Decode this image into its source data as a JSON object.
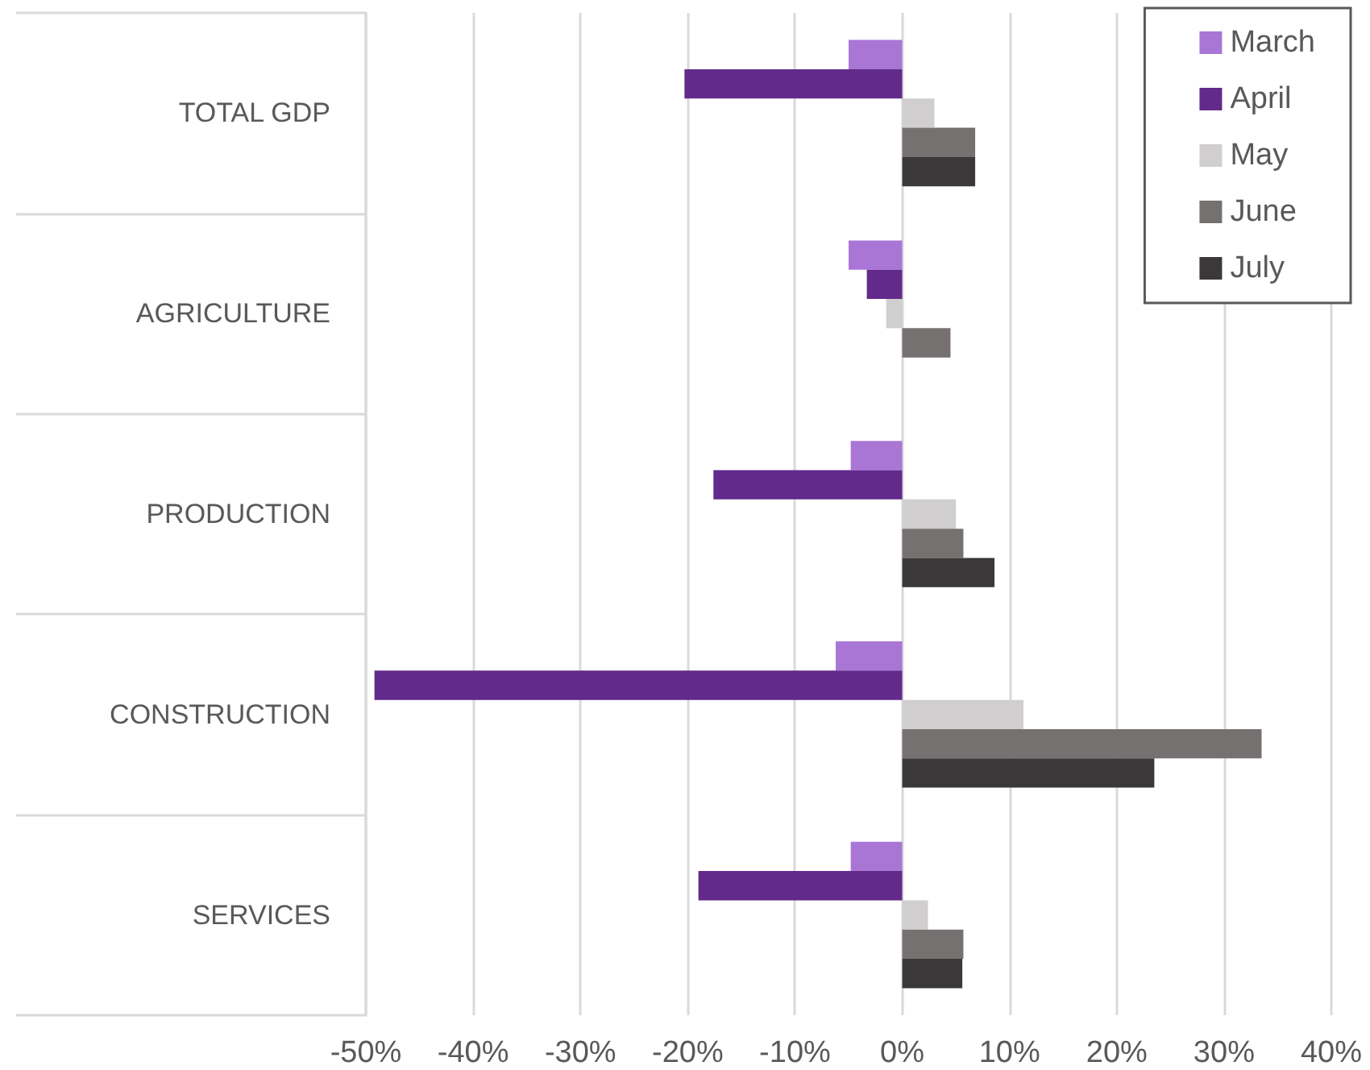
{
  "chart_data": {
    "type": "bar",
    "orientation": "horizontal",
    "categories": [
      "TOTAL GDP",
      "AGRICULTURE",
      "PRODUCTION",
      "CONSTRUCTION",
      "SERVICES"
    ],
    "series": [
      {
        "name": "March",
        "color": "#a976d6",
        "values": [
          -5.0,
          -5.0,
          -4.8,
          -6.2,
          -4.8
        ]
      },
      {
        "name": "April",
        "color": "#612a8b",
        "values": [
          -20.3,
          -3.3,
          -17.6,
          -49.2,
          -19.0
        ]
      },
      {
        "name": "May",
        "color": "#d0cece",
        "values": [
          3.0,
          -1.5,
          5.0,
          11.3,
          2.4
        ]
      },
      {
        "name": "June",
        "color": "#767171",
        "values": [
          6.8,
          4.5,
          5.7,
          33.5,
          5.7
        ]
      },
      {
        "name": "July",
        "color": "#3a3838",
        "values": [
          6.8,
          null,
          8.6,
          23.5,
          5.6
        ]
      }
    ],
    "xlim": [
      -50,
      40
    ],
    "xticks": [
      {
        "value": -50,
        "label": "-50%"
      },
      {
        "value": -40,
        "label": "-40%"
      },
      {
        "value": -30,
        "label": "-30%"
      },
      {
        "value": -20,
        "label": "-20%"
      },
      {
        "value": -10,
        "label": "-10%"
      },
      {
        "value": 0,
        "label": "0%"
      },
      {
        "value": 10,
        "label": "10%"
      },
      {
        "value": 20,
        "label": "20%"
      },
      {
        "value": 30,
        "label": "30%"
      },
      {
        "value": 40,
        "label": "40%"
      }
    ],
    "grid": "x",
    "legend": "top right"
  }
}
